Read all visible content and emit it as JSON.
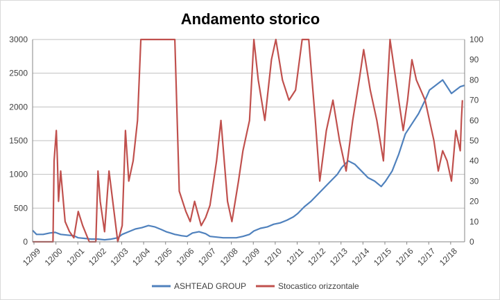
{
  "chart_data": {
    "type": "line",
    "title": "Andamento storico",
    "x_tick_labels": [
      "12/99",
      "12/00",
      "12/01",
      "12/02",
      "12/03",
      "12/04",
      "12/05",
      "12/06",
      "12/07",
      "12/08",
      "12/09",
      "12/10",
      "12/11",
      "12/12",
      "12/13",
      "12/14",
      "12/15",
      "12/16",
      "12/17",
      "12/18"
    ],
    "x_range": [
      1999.92,
      2019.6
    ],
    "y_left": {
      "ylim": [
        0,
        3000
      ],
      "ticks": [
        0,
        500,
        1000,
        1500,
        2000,
        2500,
        3000
      ]
    },
    "y_right": {
      "ylim": [
        0,
        100
      ],
      "ticks": [
        0,
        10,
        20,
        30,
        40,
        50,
        60,
        70,
        80,
        90,
        100
      ]
    },
    "grid": "horizontal",
    "legend_position": "bottom",
    "series": [
      {
        "name": "ASHTEAD GROUP",
        "axis": "left",
        "color": "#4f81bd",
        "x": [
          1999.92,
          2000.1,
          2000.4,
          2000.7,
          2000.95,
          2001.2,
          2001.5,
          2001.8,
          2002.0,
          2002.3,
          2002.6,
          2002.9,
          2003.2,
          2003.5,
          2003.8,
          2004.0,
          2004.3,
          2004.6,
          2004.9,
          2005.2,
          2005.5,
          2005.8,
          2006.0,
          2006.2,
          2006.4,
          2006.7,
          2006.95,
          2007.2,
          2007.5,
          2007.8,
          2008.0,
          2008.3,
          2008.6,
          2008.9,
          2009.2,
          2009.5,
          2009.8,
          2010.0,
          2010.3,
          2010.6,
          2010.9,
          2011.2,
          2011.5,
          2011.8,
          2012.0,
          2012.3,
          2012.6,
          2012.9,
          2013.2,
          2013.5,
          2013.8,
          2014.0,
          2014.3,
          2014.6,
          2014.9,
          2015.2,
          2015.5,
          2015.8,
          2016.0,
          2016.3,
          2016.6,
          2016.9,
          2017.2,
          2017.5,
          2017.8,
          2018.0,
          2018.2,
          2018.4,
          2018.6,
          2018.8,
          2019.0,
          2019.2,
          2019.4,
          2019.6
        ],
        "values": [
          170,
          110,
          110,
          130,
          140,
          110,
          100,
          90,
          60,
          50,
          40,
          40,
          30,
          40,
          60,
          110,
          150,
          190,
          210,
          240,
          220,
          180,
          150,
          130,
          110,
          90,
          80,
          130,
          150,
          120,
          80,
          70,
          60,
          60,
          60,
          80,
          110,
          160,
          200,
          220,
          260,
          280,
          320,
          370,
          420,
          520,
          600,
          700,
          800,
          900,
          1000,
          1100,
          1200,
          1150,
          1050,
          950,
          900,
          820,
          900,
          1050,
          1300,
          1600,
          1750,
          1900,
          2100,
          2250,
          2300,
          2350,
          2400,
          2300,
          2200,
          2250,
          2300,
          2320
        ]
      },
      {
        "name": "Stocastico orizzontale",
        "axis": "right",
        "color": "#c0504d",
        "x": [
          1999.92,
          2000.4,
          2000.85,
          2000.9,
          2001.0,
          2001.05,
          2001.1,
          2001.2,
          2001.4,
          2001.6,
          2001.8,
          2002.0,
          2002.2,
          2002.5,
          2002.8,
          2002.9,
          2003.0,
          2003.2,
          2003.4,
          2003.8,
          2004.0,
          2004.15,
          2004.3,
          2004.5,
          2004.7,
          2004.85,
          2004.95,
          2005.1,
          2005.3,
          2005.5,
          2005.8,
          2006.0,
          2006.2,
          2006.4,
          2006.6,
          2006.9,
          2007.1,
          2007.3,
          2007.6,
          2007.8,
          2008.0,
          2008.3,
          2008.5,
          2008.8,
          2009.0,
          2009.3,
          2009.5,
          2009.8,
          2010.0,
          2010.2,
          2010.5,
          2010.8,
          2011.0,
          2011.3,
          2011.6,
          2011.9,
          2012.2,
          2012.5,
          2012.8,
          2013.0,
          2013.3,
          2013.6,
          2013.9,
          2014.2,
          2014.5,
          2014.8,
          2015.0,
          2015.3,
          2015.6,
          2015.9,
          2016.2,
          2016.4,
          2016.6,
          2016.8,
          2017.0,
          2017.2,
          2017.4,
          2017.6,
          2017.8,
          2018.0,
          2018.2,
          2018.4,
          2018.6,
          2018.8,
          2019.0,
          2019.2,
          2019.4,
          2019.45,
          2019.5
        ],
        "values": [
          0,
          0,
          0,
          40,
          55,
          40,
          20,
          35,
          10,
          5,
          2,
          15,
          8,
          0,
          0,
          35,
          20,
          5,
          35,
          0,
          8,
          55,
          30,
          40,
          60,
          100,
          100,
          100,
          100,
          100,
          100,
          100,
          100,
          100,
          25,
          15,
          10,
          20,
          8,
          12,
          18,
          40,
          60,
          20,
          10,
          30,
          45,
          60,
          100,
          80,
          60,
          90,
          100,
          80,
          70,
          75,
          100,
          100,
          60,
          30,
          55,
          70,
          50,
          35,
          60,
          80,
          95,
          75,
          60,
          40,
          100,
          85,
          70,
          55,
          70,
          90,
          80,
          75,
          70,
          60,
          50,
          35,
          45,
          40,
          30,
          55,
          45,
          60,
          70
        ]
      }
    ]
  }
}
